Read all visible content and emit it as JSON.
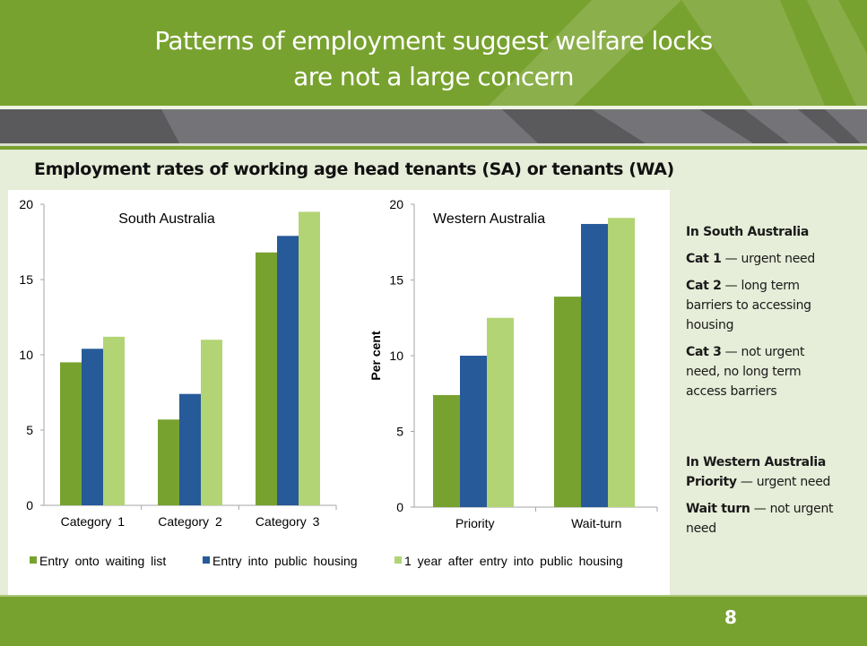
{
  "slide": {
    "title_line1": "Patterns of employment suggest welfare locks",
    "title_line2": "are not a large concern",
    "subtitle": "Employment rates of working age head tenants (SA) or tenants (WA)",
    "page_number": "8"
  },
  "colors": {
    "header_green": "#78A22F",
    "band_grey": "#5A5A5C",
    "background": "#E6EDD8",
    "series_entry_waiting_list": "#78A22F",
    "series_entry_public_housing": "#275A99",
    "series_one_year_after": "#B2D474"
  },
  "legend": {
    "items": [
      {
        "label": "Entry onto waiting list",
        "color": "#78A22F"
      },
      {
        "label": "Entry into public housing",
        "color": "#275A99"
      },
      {
        "label": "1 year after entry into public housing",
        "color": "#B2D474"
      }
    ]
  },
  "side_notes": {
    "sa_heading": "In South Australia",
    "sa_items": [
      {
        "term": "Cat 1",
        "desc": " — urgent need"
      },
      {
        "term": "Cat 2",
        "desc": " — long term barriers to accessing housing"
      },
      {
        "term": "Cat 3",
        "desc": " — not urgent need, no long term access barriers"
      }
    ],
    "wa_heading": "In Western Australia",
    "wa_items": [
      {
        "term": "Priority",
        "desc": " — urgent need"
      },
      {
        "term": "Wait turn",
        "desc": " — not urgent need"
      }
    ]
  },
  "chart_data": [
    {
      "type": "bar",
      "title": "South Australia",
      "xlabel": "",
      "ylabel": "",
      "ylim": [
        0,
        20
      ],
      "yticks": [
        0,
        5,
        10,
        15,
        20
      ],
      "grid": false,
      "legend_position": "bottom",
      "categories": [
        "Category 1",
        "Category 2",
        "Category 3"
      ],
      "series": [
        {
          "name": "Entry onto waiting list",
          "values": [
            9.5,
            5.7,
            16.8
          ]
        },
        {
          "name": "Entry into public housing",
          "values": [
            10.4,
            7.4,
            17.9
          ]
        },
        {
          "name": "1 year after entry into public housing",
          "values": [
            11.2,
            11.0,
            19.5
          ]
        }
      ]
    },
    {
      "type": "bar",
      "title": "Western Australia",
      "xlabel": "",
      "ylabel": "Per cent",
      "ylim": [
        0,
        20
      ],
      "yticks": [
        0,
        5,
        10,
        15,
        20
      ],
      "grid": false,
      "legend_position": "bottom",
      "categories": [
        "Priority",
        "Wait-turn"
      ],
      "series": [
        {
          "name": "Entry onto waiting list",
          "values": [
            7.4,
            13.9
          ]
        },
        {
          "name": "Entry into public housing",
          "values": [
            10.0,
            18.7
          ]
        },
        {
          "name": "1 year after entry into public housing",
          "values": [
            12.5,
            19.1
          ]
        }
      ]
    }
  ]
}
